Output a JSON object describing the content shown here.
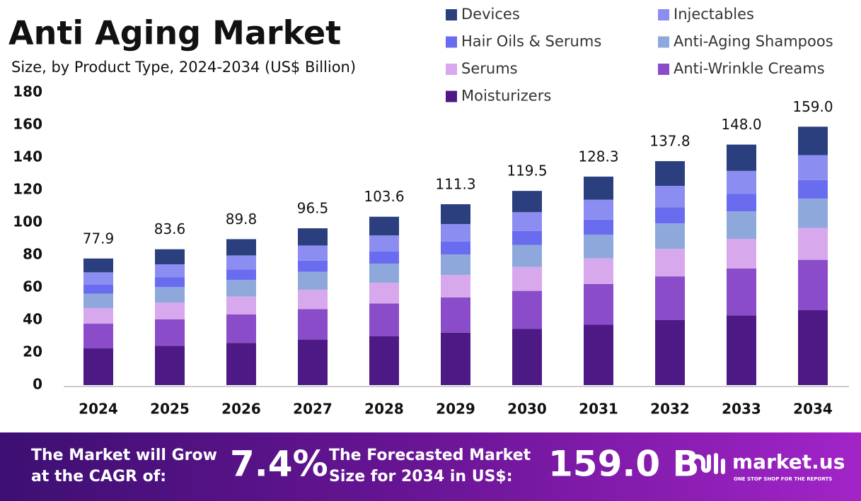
{
  "chart_data": {
    "type": "stacked-bar",
    "title": "Anti Aging Market",
    "subtitle": "Size, by Product Type, 2024-2034 (US$ Billion)",
    "categories": [
      "2024",
      "2025",
      "2026",
      "2027",
      "2028",
      "2029",
      "2030",
      "2031",
      "2032",
      "2033",
      "2034"
    ],
    "totals": [
      77.9,
      83.6,
      89.8,
      96.5,
      103.6,
      111.3,
      119.5,
      128.3,
      137.8,
      148.0,
      159.0
    ],
    "totals_labels": [
      "77.9",
      "83.6",
      "89.8",
      "96.5",
      "103.6",
      "111.3",
      "119.5",
      "128.3",
      "137.8",
      "148.0",
      "159.0"
    ],
    "series": [
      {
        "name": "Devices",
        "color": "#2b3f7e",
        "values": [
          8.5,
          9.3,
          10.0,
          10.6,
          11.5,
          12.2,
          13.1,
          14.2,
          15.2,
          16.2,
          17.5
        ]
      },
      {
        "name": "Injectables",
        "color": "#8b8ef0",
        "values": [
          7.5,
          8.0,
          8.6,
          9.3,
          9.9,
          10.7,
          11.5,
          12.3,
          13.2,
          14.2,
          15.3
        ]
      },
      {
        "name": "Hair Oils & Serums",
        "color": "#6a6cf0",
        "values": [
          5.6,
          6.0,
          6.5,
          6.9,
          7.5,
          8.0,
          8.6,
          9.2,
          9.9,
          10.7,
          11.4
        ]
      },
      {
        "name": "Anti-Aging Shampoos",
        "color": "#8fa8dc",
        "values": [
          8.9,
          9.5,
          10.2,
          11.0,
          11.8,
          12.7,
          13.6,
          14.6,
          15.7,
          16.9,
          18.1
        ]
      },
      {
        "name": "Serums",
        "color": "#d8a8ec",
        "values": [
          9.6,
          10.3,
          11.0,
          11.9,
          12.7,
          13.7,
          14.7,
          15.8,
          16.9,
          18.2,
          19.6
        ]
      },
      {
        "name": "Anti-Wrinkle Creams",
        "color": "#8a4cc8",
        "values": [
          15.2,
          16.3,
          17.5,
          18.8,
          20.2,
          21.7,
          23.3,
          25.0,
          26.9,
          28.9,
          31.0
        ]
      },
      {
        "name": "Moisturizers",
        "color": "#4d1a85",
        "values": [
          22.6,
          24.2,
          26.0,
          28.0,
          30.0,
          32.3,
          34.7,
          37.2,
          40.0,
          42.9,
          46.1
        ]
      }
    ],
    "ylim": [
      0,
      180
    ],
    "yticks": [
      0,
      20,
      40,
      60,
      80,
      100,
      120,
      140,
      160,
      180
    ],
    "grid": false
  },
  "footer": {
    "cagr_text": [
      "The Market will Grow",
      "at the CAGR of:"
    ],
    "cagr_value": "7.4%",
    "forecast_text": [
      "The Forecasted Market",
      "Size for 2034 in US$:"
    ],
    "forecast_value": "159.0 B",
    "brand": "market.us",
    "tagline": "ONE STOP SHOP FOR THE REPORTS"
  }
}
